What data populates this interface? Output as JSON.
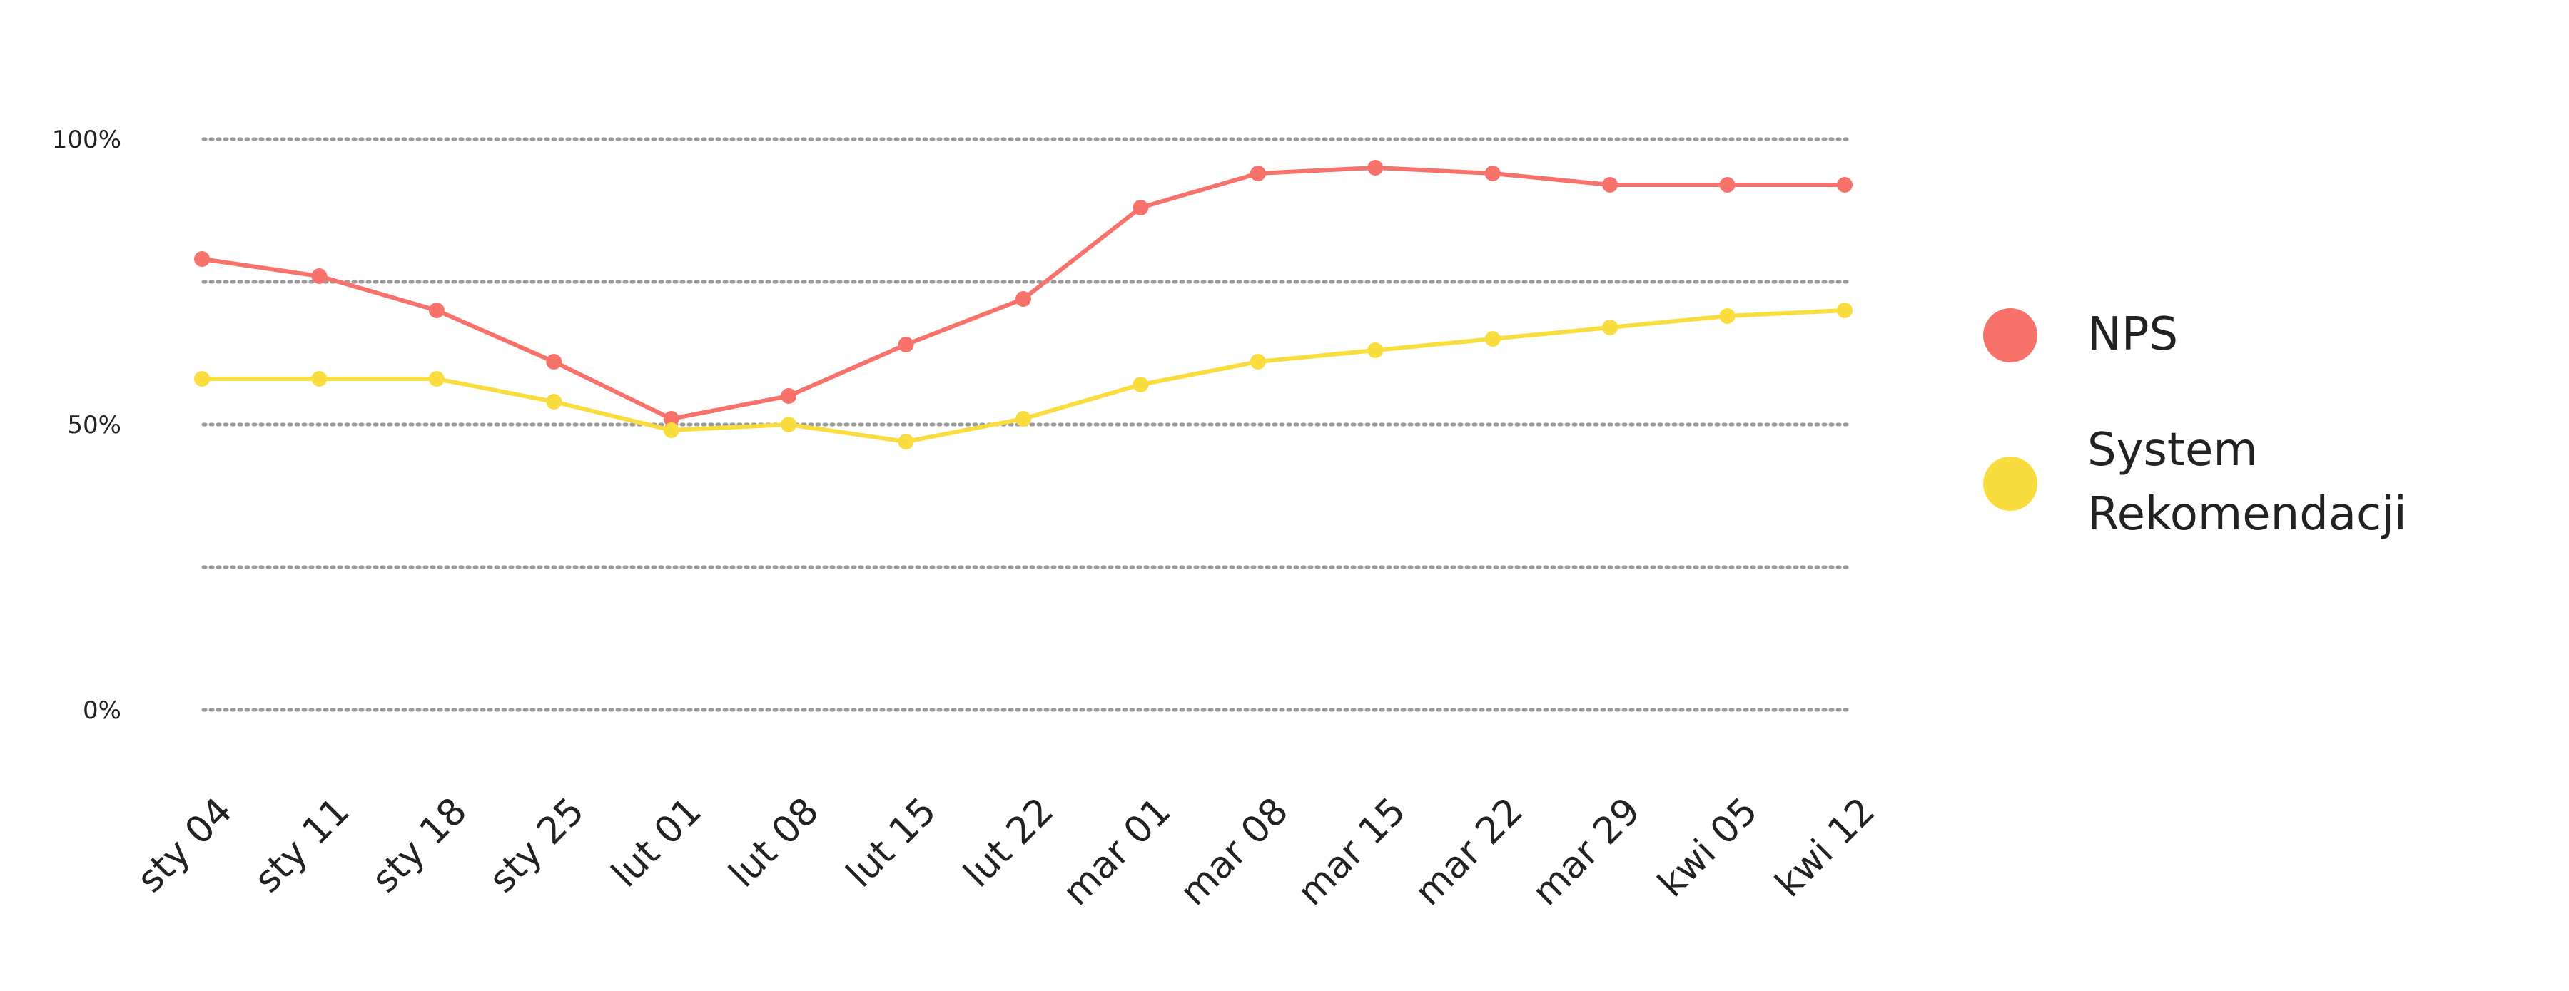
{
  "chart_data": {
    "type": "line",
    "categories": [
      "sty 04",
      "sty 11",
      "sty 18",
      "sty 25",
      "lut 01",
      "lut 08",
      "lut 15",
      "lut 22",
      "mar 01",
      "mar 08",
      "mar 15",
      "mar 22",
      "mar 29",
      "kwi 05",
      "kwi 12"
    ],
    "ylim": [
      0,
      100
    ],
    "y_ticks": [
      {
        "value": 0,
        "label": "0%"
      },
      {
        "value": 50,
        "label": "50%"
      },
      {
        "value": 100,
        "label": "100%"
      }
    ],
    "gridlines": [
      0,
      25,
      50,
      75,
      100
    ],
    "grid": true,
    "legend_position": "right",
    "series": [
      {
        "name": "NPS",
        "color": "#F7726A",
        "values": [
          79,
          76,
          70,
          61,
          51,
          55,
          64,
          72,
          88,
          94,
          95,
          94,
          92,
          92,
          92
        ]
      },
      {
        "name": "System Rekomendacji",
        "color": "#F9DD3F",
        "values": [
          58,
          58,
          58,
          54,
          49,
          50,
          47,
          51,
          57,
          61,
          63,
          65,
          67,
          69,
          70
        ]
      }
    ],
    "legend_label_lines": [
      [
        "NPS"
      ],
      [
        "System",
        "Rekomendacji"
      ]
    ]
  }
}
